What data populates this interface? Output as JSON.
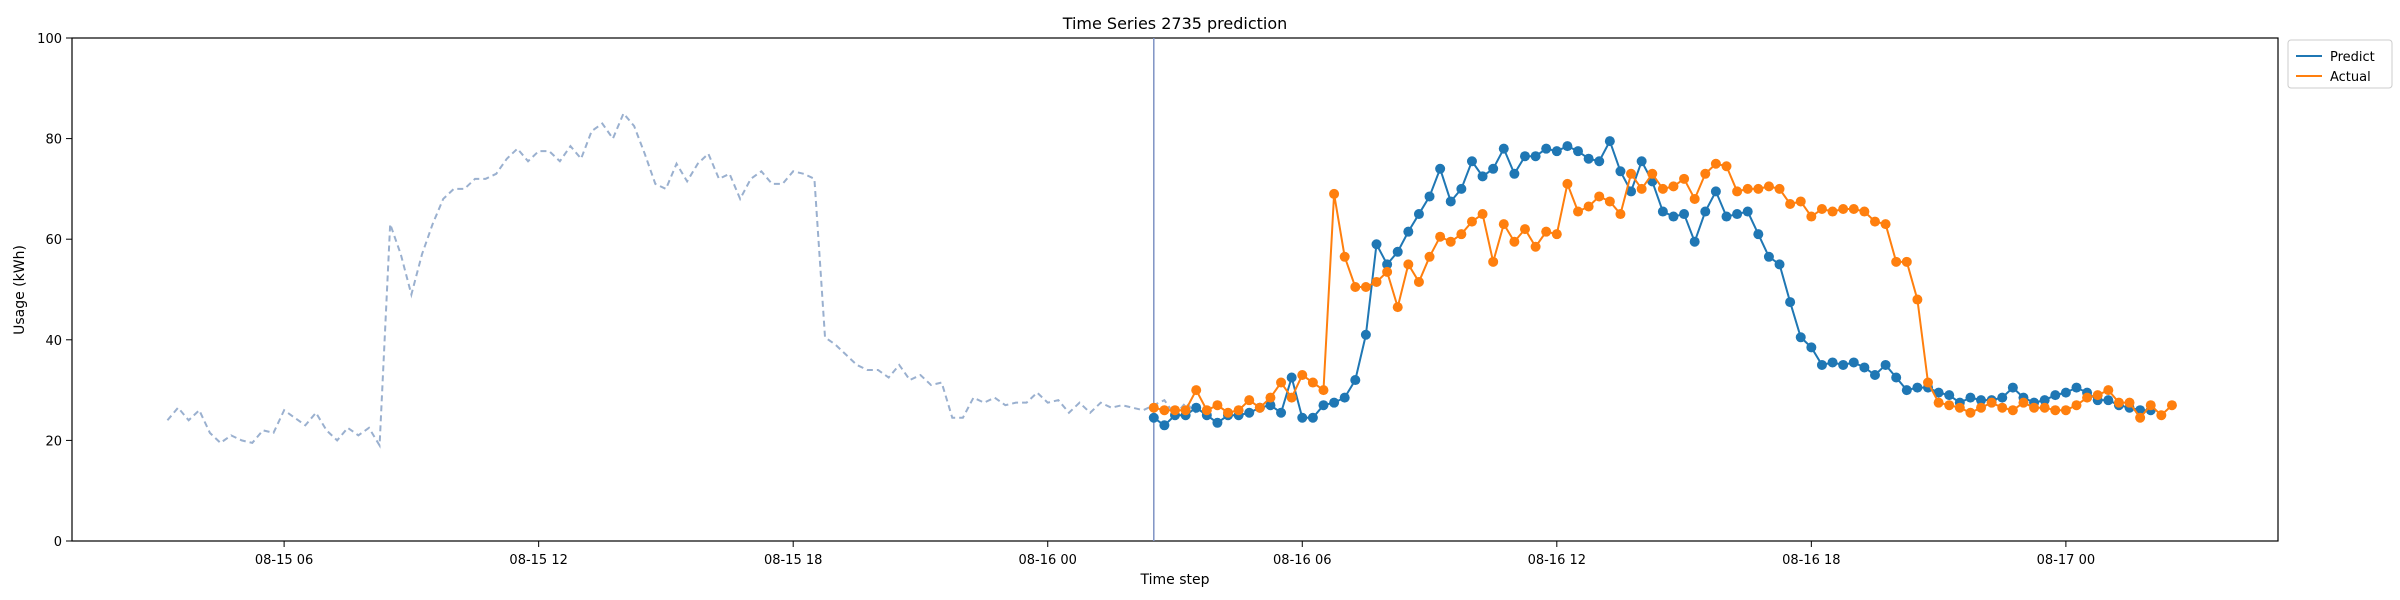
{
  "chart_data": {
    "type": "line",
    "title": "Time Series 2735 prediction",
    "xlabel": "Time step",
    "ylabel": "Usage (kWh)",
    "xlim": [
      "2024-08-15 01:00",
      "2024-08-17 05:00"
    ],
    "ylim": [
      0,
      100
    ],
    "yticks": [
      0,
      20,
      40,
      60,
      80,
      100
    ],
    "xticks": [
      {
        "value": "2024-08-15 06:00",
        "label": "08-15 06"
      },
      {
        "value": "2024-08-15 12:00",
        "label": "08-15 12"
      },
      {
        "value": "2024-08-15 18:00",
        "label": "08-15 18"
      },
      {
        "value": "2024-08-16 00:00",
        "label": "08-16 00"
      },
      {
        "value": "2024-08-16 06:00",
        "label": "08-16 06"
      },
      {
        "value": "2024-08-16 12:00",
        "label": "08-16 12"
      },
      {
        "value": "2024-08-16 18:00",
        "label": "08-16 18"
      },
      {
        "value": "2024-08-17 00:00",
        "label": "08-17 00"
      }
    ],
    "forecast_start": "2024-08-16 02:30",
    "legend_position": "top-right outside",
    "history": {
      "start": "2024-08-15 03:15",
      "step_minutes": 15,
      "color": "#9ab0cf",
      "values": [
        24,
        26.5,
        24,
        26,
        21.5,
        19.5,
        21,
        20,
        19.5,
        22,
        21.5,
        26,
        24.5,
        23,
        25.5,
        22,
        20,
        22.5,
        21,
        22.5,
        19,
        63,
        57,
        49,
        57,
        63,
        68,
        70,
        70,
        72,
        72,
        73,
        76,
        78,
        75.5,
        77.5,
        77.5,
        75.5,
        78.5,
        76,
        81.5,
        83,
        80,
        85,
        82.5,
        77,
        71,
        70,
        75,
        71.5,
        75,
        77,
        72,
        73,
        68,
        72,
        73.5,
        71,
        71,
        73.5,
        73,
        72,
        40.5,
        39,
        37,
        35,
        34,
        34,
        32.5,
        35,
        32,
        33,
        31,
        31.5,
        24.5,
        24.5,
        28.5,
        27.5,
        28.5,
        27,
        27.5,
        27.5,
        29.5,
        27.5,
        28,
        25.5,
        27.5,
        25.5,
        27.5,
        26.5,
        27,
        26.5,
        26,
        27,
        28,
        25,
        27.5,
        25.5
      ]
    },
    "series": [
      {
        "name": "Predict",
        "color": "#1f77b4",
        "start": "2024-08-16 02:30",
        "step_minutes": 15,
        "values": [
          24.5,
          23,
          25,
          25,
          26.5,
          25,
          23.5,
          25,
          25,
          25.5,
          26.5,
          27,
          25.5,
          32.5,
          24.5,
          24.5,
          27,
          27.5,
          28.5,
          32,
          41,
          59,
          55,
          57.5,
          61.5,
          65,
          68.5,
          74,
          67.5,
          70,
          75.5,
          72.5,
          74,
          78,
          73,
          76.5,
          76.5,
          78,
          77.5,
          78.5,
          77.5,
          76,
          75.5,
          79.5,
          73.5,
          69.5,
          75.5,
          71.5,
          65.5,
          64.5,
          65,
          59.5,
          65.5,
          69.5,
          64.5,
          65,
          65.5,
          61,
          56.5,
          55,
          47.5,
          40.5,
          38.5,
          35,
          35.5,
          35,
          35.5,
          34.5,
          33,
          35,
          32.5,
          30,
          30.5,
          30.5,
          29.5,
          29,
          27.5,
          28.5,
          28,
          28,
          28.5,
          30.5,
          28.5,
          27.5,
          28,
          29,
          29.5,
          30.5,
          29.5,
          28,
          28,
          27,
          26.5,
          26,
          26
        ]
      },
      {
        "name": "Actual",
        "color": "#ff7f0e",
        "start": "2024-08-16 02:30",
        "step_minutes": 15,
        "values": [
          26.5,
          26,
          26,
          26,
          30,
          26,
          27,
          25.5,
          26,
          28,
          26.5,
          28.5,
          31.5,
          28.5,
          33,
          31.5,
          30,
          69,
          56.5,
          50.5,
          50.5,
          51.5,
          53.5,
          46.5,
          55,
          51.5,
          56.5,
          60.5,
          59.5,
          61,
          63.5,
          65,
          55.5,
          63,
          59.5,
          62,
          58.5,
          61.5,
          61,
          71,
          65.5,
          66.5,
          68.5,
          67.5,
          65,
          73,
          70,
          73,
          70,
          70.5,
          72,
          68,
          73,
          75,
          74.5,
          69.5,
          70,
          70,
          70.5,
          70,
          67,
          67.5,
          64.5,
          66,
          65.5,
          66,
          66,
          65.5,
          63.5,
          63,
          55.5,
          55.5,
          48,
          31.5,
          27.5,
          27,
          26.5,
          25.5,
          26.5,
          27.5,
          26.5,
          26,
          27.5,
          26.5,
          26.5,
          26,
          26,
          27,
          28.5,
          29,
          30,
          27.5,
          27.5,
          24.5,
          27,
          25,
          27
        ]
      }
    ]
  }
}
